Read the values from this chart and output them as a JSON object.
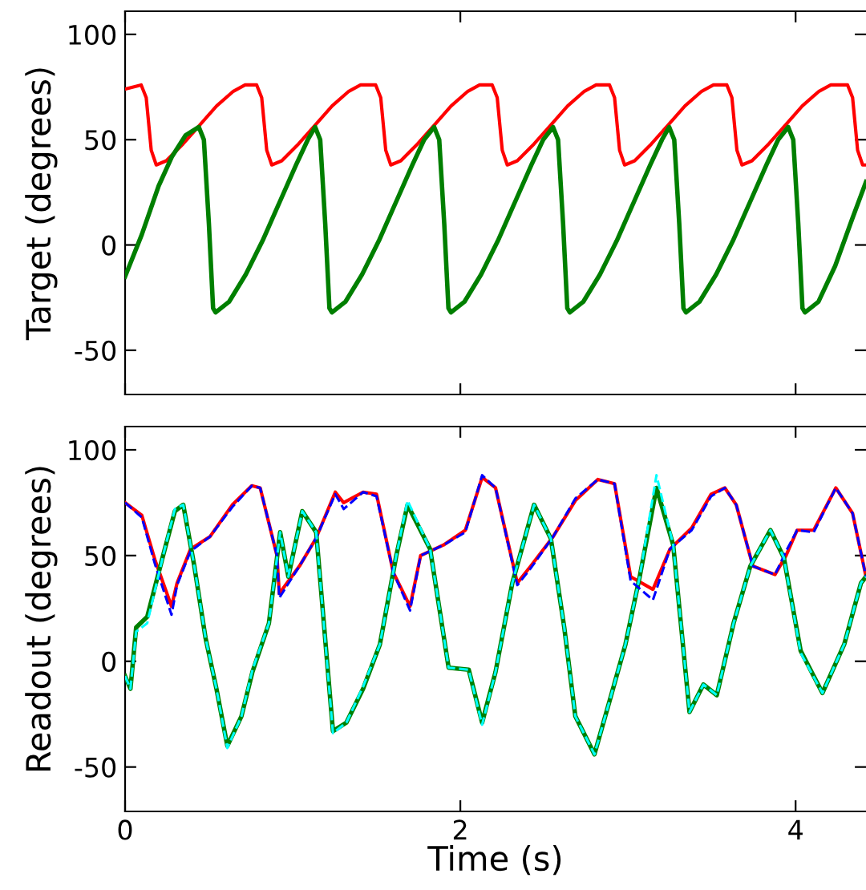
{
  "chart_data": [
    {
      "type": "line",
      "ylabel": "Target (degrees)",
      "xlim": [
        0,
        4.42
      ],
      "ylim": [
        -71,
        111
      ],
      "xticks": [
        0,
        2,
        4
      ],
      "yticks": [
        -50,
        0,
        50,
        100
      ],
      "tick_labels": "y",
      "grid": false,
      "marker": "none",
      "series": [
        {
          "color": "#ff0000",
          "line_style": "solid",
          "x": [
            0,
            0.096,
            0.126,
            0.156,
            0.186,
            0.246,
            0.346,
            0.446,
            0.546,
            0.646,
            0.716,
            0.785,
            0.815,
            0.845,
            0.875,
            0.935,
            1.035,
            1.135,
            1.235,
            1.335,
            1.405,
            1.495,
            1.525,
            1.555,
            1.585,
            1.645,
            1.745,
            1.845,
            1.945,
            2.045,
            2.115,
            2.19,
            2.22,
            2.25,
            2.28,
            2.34,
            2.44,
            2.54,
            2.64,
            2.74,
            2.81,
            2.89,
            2.92,
            2.95,
            2.98,
            3.04,
            3.14,
            3.24,
            3.34,
            3.44,
            3.51,
            3.59,
            3.62,
            3.65,
            3.68,
            3.74,
            3.84,
            3.94,
            4.04,
            4.14,
            4.21,
            4.31,
            4.34,
            4.37,
            4.4,
            4.42
          ],
          "values": [
            74,
            76,
            70,
            45,
            38,
            40,
            48,
            57,
            66,
            73,
            76,
            76,
            70,
            45,
            38,
            40,
            48,
            57,
            66,
            73,
            76,
            76,
            70,
            45,
            38,
            40,
            48,
            57,
            66,
            73,
            76,
            76,
            70,
            45,
            38,
            40,
            48,
            57,
            66,
            73,
            76,
            76,
            70,
            45,
            38,
            40,
            48,
            57,
            66,
            73,
            76,
            76,
            70,
            45,
            38,
            40,
            48,
            57,
            66,
            73,
            76,
            76,
            70,
            45,
            38,
            38
          ]
        },
        {
          "color": "#007f00",
          "line_style": "solid",
          "x": [
            0,
            0.1,
            0.2,
            0.28,
            0.36,
            0.44,
            0.47,
            0.5,
            0.525,
            0.54,
            0.62,
            0.72,
            0.82,
            0.92,
            1.02,
            1.09,
            1.134,
            1.164,
            1.194,
            1.219,
            1.234,
            1.314,
            1.414,
            1.514,
            1.614,
            1.714,
            1.784,
            1.844,
            1.874,
            1.904,
            1.929,
            1.944,
            2.024,
            2.124,
            2.224,
            2.324,
            2.424,
            2.494,
            2.553,
            2.583,
            2.613,
            2.638,
            2.653,
            2.733,
            2.833,
            2.933,
            3.033,
            3.133,
            3.203,
            3.246,
            3.276,
            3.306,
            3.331,
            3.346,
            3.426,
            3.526,
            3.626,
            3.726,
            3.826,
            3.896,
            3.956,
            3.986,
            4.016,
            4.041,
            4.056,
            4.136,
            4.236,
            4.336,
            4.42
          ],
          "values": [
            -15,
            5,
            28,
            42,
            52,
            56,
            50,
            10,
            -30,
            -32,
            -27,
            -14,
            2,
            20,
            38,
            50,
            56,
            50,
            10,
            -30,
            -32,
            -27,
            -14,
            2,
            20,
            38,
            50,
            56,
            50,
            10,
            -30,
            -32,
            -27,
            -14,
            2,
            20,
            38,
            50,
            56,
            50,
            10,
            -30,
            -32,
            -27,
            -14,
            2,
            20,
            38,
            50,
            56,
            50,
            10,
            -30,
            -32,
            -27,
            -14,
            2,
            20,
            38,
            50,
            56,
            50,
            10,
            -30,
            -32,
            -27,
            -10,
            12,
            30
          ]
        }
      ]
    },
    {
      "type": "line",
      "xlabel": "Time (s)",
      "ylabel": "Readout (degrees)",
      "xlim": [
        0,
        4.42
      ],
      "ylim": [
        -71,
        111
      ],
      "xticks": [
        0,
        2,
        4
      ],
      "yticks": [
        -50,
        0,
        50,
        100
      ],
      "grid": false,
      "marker": "none",
      "series": [
        {
          "color": "#0000ff",
          "line_style": "dashed",
          "x": [
            0,
            0.1,
            0.178,
            0.277,
            0.31,
            0.39,
            0.507,
            0.64,
            0.756,
            0.806,
            0.906,
            0.92,
            1.04,
            1.138,
            1.254,
            1.304,
            1.42,
            1.5,
            1.6,
            1.7,
            1.763,
            1.9,
            2.03,
            2.13,
            2.21,
            2.34,
            2.42,
            2.554,
            2.686,
            2.82,
            2.92,
            3.016,
            3.149,
            3.25,
            3.38,
            3.496,
            3.578,
            3.646,
            3.745,
            3.877,
            3.943,
            4.009,
            4.108,
            4.24,
            4.34,
            4.42
          ],
          "values": [
            75,
            68,
            46,
            22,
            36,
            52,
            59,
            73,
            83,
            82,
            50,
            30,
            45,
            58,
            79,
            72,
            80,
            78,
            42,
            24,
            50,
            55,
            61,
            88,
            82,
            36,
            44,
            59,
            77,
            86,
            84,
            38,
            29,
            53,
            62,
            78,
            82,
            74,
            45,
            41,
            52,
            62,
            61,
            82,
            70,
            40
          ]
        },
        {
          "color": "#ff0000",
          "line_style": "solid",
          "x": [
            0,
            0.1,
            0.178,
            0.277,
            0.31,
            0.39,
            0.507,
            0.64,
            0.756,
            0.806,
            0.906,
            0.92,
            1.04,
            1.138,
            1.254,
            1.304,
            1.42,
            1.5,
            1.6,
            1.7,
            1.763,
            1.9,
            2.03,
            2.13,
            2.21,
            2.34,
            2.42,
            2.554,
            2.686,
            2.82,
            2.92,
            3.016,
            3.149,
            3.25,
            3.38,
            3.496,
            3.578,
            3.646,
            3.745,
            3.877,
            3.943,
            4.009,
            4.108,
            4.24,
            4.34,
            4.42
          ],
          "values": [
            75,
            69,
            48,
            26,
            37,
            53,
            59,
            74,
            83,
            82,
            50,
            32,
            45,
            58,
            80,
            75,
            80,
            79,
            42,
            26,
            50,
            55,
            62,
            87,
            82,
            37,
            45,
            59,
            76,
            86,
            84,
            40,
            34,
            53,
            63,
            79,
            82,
            74,
            45,
            41,
            50,
            62,
            62,
            82,
            70,
            40
          ]
        },
        {
          "color": "#00ffff",
          "line_style": "dashed",
          "x": [
            0,
            0.032,
            0.066,
            0.132,
            0.23,
            0.297,
            0.347,
            0.413,
            0.48,
            0.545,
            0.61,
            0.694,
            0.76,
            0.858,
            0.925,
            0.974,
            1.057,
            1.14,
            1.24,
            1.32,
            1.42,
            1.52,
            1.618,
            1.685,
            1.82,
            1.93,
            2.05,
            2.13,
            2.21,
            2.31,
            2.44,
            2.54,
            2.62,
            2.686,
            2.8,
            2.9,
            2.985,
            3.07,
            3.17,
            3.27,
            3.367,
            3.45,
            3.53,
            3.63,
            3.73,
            3.85,
            3.93,
            4.03,
            4.16,
            4.29,
            4.39,
            4.42
          ],
          "values": [
            -7,
            -13,
            14,
            18,
            51,
            72,
            74,
            45,
            11,
            -13,
            -41,
            -26,
            -4,
            18,
            61,
            40,
            71,
            61,
            -34,
            -29,
            -12,
            8,
            50,
            76,
            53,
            -3,
            -4,
            -30,
            -5,
            37,
            74,
            58,
            16,
            -26,
            -44,
            -16,
            8,
            40,
            88,
            55,
            -24,
            -11,
            -16,
            18,
            45,
            62,
            49,
            4,
            -15,
            8,
            37,
            40
          ]
        },
        {
          "color": "#007f00",
          "line_style": "solid",
          "x": [
            0,
            0.032,
            0.066,
            0.132,
            0.23,
            0.297,
            0.347,
            0.413,
            0.48,
            0.545,
            0.61,
            0.694,
            0.76,
            0.858,
            0.925,
            0.974,
            1.057,
            1.14,
            1.24,
            1.32,
            1.42,
            1.52,
            1.618,
            1.685,
            1.82,
            1.93,
            2.05,
            2.13,
            2.21,
            2.31,
            2.44,
            2.54,
            2.62,
            2.686,
            2.8,
            2.9,
            2.985,
            3.07,
            3.17,
            3.27,
            3.367,
            3.45,
            3.53,
            3.63,
            3.73,
            3.85,
            3.93,
            4.03,
            4.16,
            4.29,
            4.39,
            4.42
          ],
          "values": [
            -7,
            -13,
            16,
            21,
            51,
            71,
            74,
            45,
            11,
            -13,
            -40,
            -26,
            -5,
            18,
            61,
            40,
            71,
            61,
            -33,
            -29,
            -13,
            8,
            50,
            74,
            53,
            -3,
            -4,
            -29,
            -5,
            37,
            74,
            58,
            16,
            -26,
            -44,
            -16,
            8,
            40,
            82,
            55,
            -24,
            -11,
            -16,
            18,
            45,
            62,
            49,
            5,
            -15,
            8,
            37,
            40
          ]
        }
      ]
    }
  ]
}
